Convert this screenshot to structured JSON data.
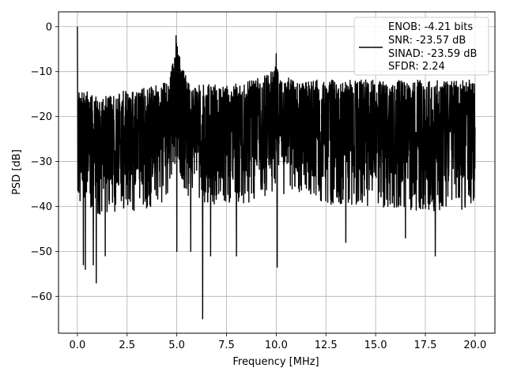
{
  "chart_data": {
    "type": "line",
    "title": "",
    "xlabel": "Frequency [MHz]",
    "ylabel": "PSD [dB]",
    "xlim": [
      -0.95,
      21.0
    ],
    "ylim": [
      -68.2,
      3.3
    ],
    "xticks": [
      0.0,
      2.5,
      5.0,
      7.5,
      10.0,
      12.5,
      15.0,
      17.5,
      20.0
    ],
    "xtick_labels": [
      "0.0",
      "2.5",
      "5.0",
      "7.5",
      "10.0",
      "12.5",
      "15.0",
      "17.5",
      "20.0"
    ],
    "yticks": [
      0,
      -10,
      -20,
      -30,
      -40,
      -50,
      -60
    ],
    "ytick_labels": [
      "0",
      "−10",
      "−20",
      "−30",
      "−40",
      "−50",
      "−60"
    ],
    "grid": true,
    "legend": {
      "placement": "top-right",
      "lines": [
        "ENOB: -4.21 bits",
        "SNR: -23.57 dB",
        "SINAD: -23.59 dB",
        "SFDR: 2.24"
      ]
    },
    "line_color": "#000000",
    "envelope": {
      "x": [
        0.0,
        0.5,
        1.0,
        2.0,
        3.0,
        4.0,
        4.5,
        4.8,
        5.0,
        5.2,
        5.5,
        6.0,
        7.0,
        8.0,
        9.0,
        9.8,
        10.0,
        10.5,
        11.0,
        12.0,
        13.0,
        14.0,
        15.0,
        16.0,
        17.0,
        18.0,
        19.0,
        20.0
      ],
      "upper": [
        -13,
        -15,
        -16,
        -15,
        -14,
        -13,
        -12,
        -8,
        -3,
        -8,
        -12,
        -13,
        -13,
        -13,
        -12,
        -10,
        -9,
        -11,
        -12,
        -12,
        -12,
        -12,
        -12,
        -12,
        -12,
        -12,
        -12,
        -12
      ],
      "lower": [
        -40,
        -40,
        -42,
        -41,
        -41,
        -40,
        -38,
        -33,
        -30,
        -33,
        -38,
        -39,
        -40,
        -40,
        -39,
        -37,
        -36,
        -38,
        -39,
        -39,
        -40,
        -40,
        -40,
        -41,
        -41,
        -41,
        -41,
        -40
      ]
    },
    "peaks": [
      {
        "x": 0.0,
        "y": 0
      },
      {
        "x": 4.96,
        "y": -2
      },
      {
        "x": 10.0,
        "y": -6
      }
    ],
    "dips": [
      {
        "x": 0.3,
        "y": -53
      },
      {
        "x": 0.4,
        "y": -54
      },
      {
        "x": 0.8,
        "y": -53
      },
      {
        "x": 0.95,
        "y": -57
      },
      {
        "x": 1.4,
        "y": -51
      },
      {
        "x": 5.0,
        "y": -50
      },
      {
        "x": 5.7,
        "y": -50
      },
      {
        "x": 6.3,
        "y": -65
      },
      {
        "x": 6.7,
        "y": -51
      },
      {
        "x": 8.0,
        "y": -51
      },
      {
        "x": 10.05,
        "y": -53.5
      },
      {
        "x": 13.5,
        "y": -48
      },
      {
        "x": 16.5,
        "y": -47
      },
      {
        "x": 18.0,
        "y": -51
      }
    ]
  }
}
